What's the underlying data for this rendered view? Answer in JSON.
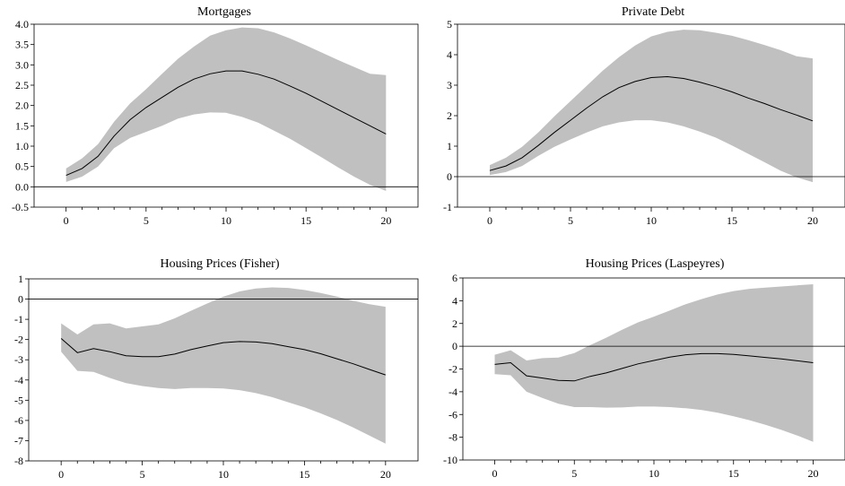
{
  "chart_data": [
    {
      "type": "area",
      "title": "Mortgages",
      "xlabel": "",
      "ylabel": "",
      "xlim": [
        -2,
        22
      ],
      "ylim": [
        -0.5,
        4.0
      ],
      "xticks": [
        0,
        5,
        10,
        15,
        20
      ],
      "yticks": [
        -0.5,
        0.0,
        0.5,
        1.0,
        1.5,
        2.0,
        2.5,
        3.0,
        3.5,
        4.0
      ],
      "ytick_labels": [
        "-0.5",
        "0.0",
        "0.5",
        "1.0",
        "1.5",
        "2.0",
        "2.5",
        "3.0",
        "3.5",
        "4.0"
      ],
      "grid": false,
      "zero_line": true,
      "band_color": "#c0c0c0",
      "line_color": "#000000",
      "x": [
        0,
        1,
        2,
        3,
        4,
        5,
        6,
        7,
        8,
        9,
        10,
        11,
        12,
        13,
        14,
        15,
        16,
        17,
        18,
        19,
        20
      ],
      "median": [
        0.28,
        0.45,
        0.75,
        1.25,
        1.65,
        1.95,
        2.2,
        2.45,
        2.65,
        2.78,
        2.85,
        2.85,
        2.77,
        2.65,
        2.48,
        2.3,
        2.1,
        1.9,
        1.7,
        1.5,
        1.3
      ],
      "lower": [
        0.12,
        0.25,
        0.5,
        0.95,
        1.2,
        1.35,
        1.5,
        1.68,
        1.78,
        1.83,
        1.82,
        1.72,
        1.58,
        1.38,
        1.18,
        0.95,
        0.72,
        0.48,
        0.25,
        0.05,
        -0.1
      ],
      "upper": [
        0.45,
        0.7,
        1.05,
        1.6,
        2.05,
        2.4,
        2.78,
        3.15,
        3.45,
        3.72,
        3.85,
        3.92,
        3.9,
        3.8,
        3.65,
        3.48,
        3.3,
        3.12,
        2.95,
        2.78,
        2.75
      ]
    },
    {
      "type": "area",
      "title": "Private Debt",
      "xlabel": "",
      "ylabel": "",
      "xlim": [
        -2,
        22
      ],
      "ylim": [
        -1,
        5
      ],
      "xticks": [
        0,
        5,
        10,
        15,
        20
      ],
      "yticks": [
        -1,
        0,
        1,
        2,
        3,
        4,
        5
      ],
      "ytick_labels": [
        "-1",
        "0",
        "1",
        "2",
        "3",
        "4",
        "5"
      ],
      "grid": false,
      "zero_line": true,
      "band_color": "#c0c0c0",
      "line_color": "#000000",
      "x": [
        0,
        1,
        2,
        3,
        4,
        5,
        6,
        7,
        8,
        9,
        10,
        11,
        12,
        13,
        14,
        15,
        16,
        17,
        18,
        19,
        20
      ],
      "median": [
        0.2,
        0.35,
        0.62,
        1.02,
        1.45,
        1.85,
        2.25,
        2.62,
        2.92,
        3.12,
        3.25,
        3.28,
        3.22,
        3.1,
        2.95,
        2.78,
        2.58,
        2.4,
        2.2,
        2.02,
        1.83
      ],
      "lower": [
        0.05,
        0.15,
        0.35,
        0.68,
        0.98,
        1.22,
        1.45,
        1.65,
        1.78,
        1.85,
        1.85,
        1.78,
        1.65,
        1.48,
        1.28,
        1.02,
        0.75,
        0.48,
        0.2,
        -0.02,
        -0.18
      ],
      "upper": [
        0.38,
        0.62,
        0.98,
        1.45,
        1.98,
        2.48,
        2.98,
        3.48,
        3.92,
        4.3,
        4.6,
        4.75,
        4.82,
        4.8,
        4.72,
        4.62,
        4.48,
        4.32,
        4.15,
        3.95,
        3.88
      ]
    },
    {
      "type": "area",
      "title": "Housing Prices (Fisher)",
      "xlabel": "",
      "ylabel": "",
      "xlim": [
        -2,
        22
      ],
      "ylim": [
        -8,
        1
      ],
      "xticks": [
        0,
        5,
        10,
        15,
        20
      ],
      "yticks": [
        -8,
        -7,
        -6,
        -5,
        -4,
        -3,
        -2,
        -1,
        0,
        1
      ],
      "ytick_labels": [
        "-8",
        "-7",
        "-6",
        "-5",
        "-4",
        "-3",
        "-2",
        "-1",
        "0",
        "1"
      ],
      "grid": false,
      "zero_line": true,
      "band_color": "#c0c0c0",
      "line_color": "#000000",
      "x": [
        0,
        1,
        2,
        3,
        4,
        5,
        6,
        7,
        8,
        9,
        10,
        11,
        12,
        13,
        14,
        15,
        16,
        17,
        18,
        19,
        20
      ],
      "median": [
        -1.95,
        -2.65,
        -2.45,
        -2.6,
        -2.8,
        -2.85,
        -2.85,
        -2.72,
        -2.5,
        -2.32,
        -2.15,
        -2.1,
        -2.12,
        -2.2,
        -2.35,
        -2.5,
        -2.7,
        -2.95,
        -3.2,
        -3.48,
        -3.75
      ],
      "lower": [
        -2.6,
        -3.55,
        -3.6,
        -3.9,
        -4.15,
        -4.3,
        -4.4,
        -4.45,
        -4.4,
        -4.4,
        -4.42,
        -4.5,
        -4.65,
        -4.85,
        -5.1,
        -5.35,
        -5.65,
        -5.98,
        -6.35,
        -6.75,
        -7.15
      ],
      "upper": [
        -1.2,
        -1.75,
        -1.25,
        -1.2,
        -1.45,
        -1.35,
        -1.25,
        -0.95,
        -0.58,
        -0.22,
        0.12,
        0.38,
        0.52,
        0.58,
        0.55,
        0.45,
        0.3,
        0.12,
        -0.08,
        -0.25,
        -0.38
      ]
    },
    {
      "type": "area",
      "title": "Housing Prices (Laspeyres)",
      "xlabel": "",
      "ylabel": "",
      "xlim": [
        -2,
        22
      ],
      "ylim": [
        -10,
        6
      ],
      "xticks": [
        0,
        5,
        10,
        15,
        20
      ],
      "yticks": [
        -10,
        -8,
        -6,
        -4,
        -2,
        0,
        2,
        4,
        6
      ],
      "ytick_labels": [
        "-10",
        "-8",
        "-6",
        "-4",
        "-2",
        "0",
        "2",
        "4",
        "6"
      ],
      "grid": false,
      "zero_line": true,
      "band_color": "#c0c0c0",
      "line_color": "#000000",
      "x": [
        0,
        1,
        2,
        3,
        4,
        5,
        6,
        7,
        8,
        9,
        10,
        11,
        12,
        13,
        14,
        15,
        16,
        17,
        18,
        19,
        20
      ],
      "median": [
        -1.6,
        -1.45,
        -2.6,
        -2.8,
        -3.0,
        -3.05,
        -2.65,
        -2.35,
        -1.95,
        -1.55,
        -1.25,
        -0.95,
        -0.75,
        -0.65,
        -0.65,
        -0.72,
        -0.85,
        -0.98,
        -1.12,
        -1.28,
        -1.45
      ],
      "lower": [
        -2.45,
        -2.55,
        -4.0,
        -4.55,
        -5.05,
        -5.35,
        -5.35,
        -5.4,
        -5.38,
        -5.3,
        -5.3,
        -5.35,
        -5.45,
        -5.6,
        -5.85,
        -6.15,
        -6.5,
        -6.9,
        -7.35,
        -7.85,
        -8.4
      ],
      "upper": [
        -0.75,
        -0.35,
        -1.25,
        -1.05,
        -1.0,
        -0.6,
        0.1,
        0.75,
        1.45,
        2.1,
        2.6,
        3.15,
        3.7,
        4.15,
        4.55,
        4.85,
        5.05,
        5.15,
        5.25,
        5.35,
        5.45
      ]
    }
  ]
}
